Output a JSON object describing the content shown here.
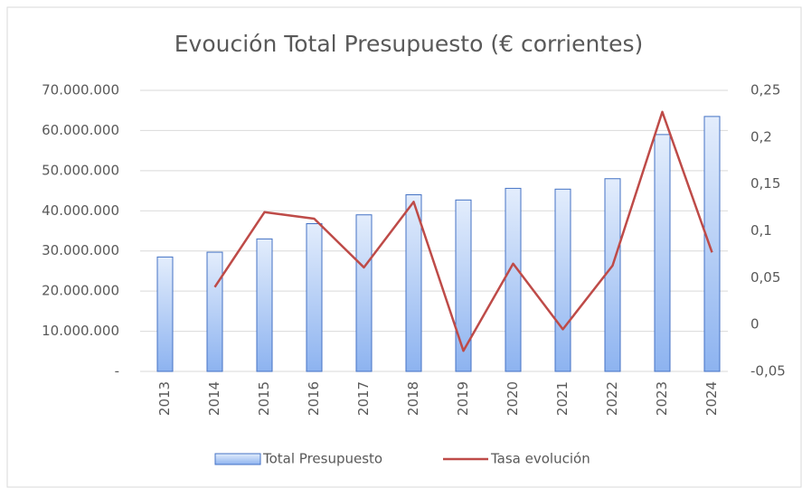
{
  "chart_data": {
    "type": "bar-line",
    "title": "Evoución  Total Presupuesto  (€ corrientes)",
    "categories": [
      "2013",
      "2014",
      "2015",
      "2016",
      "2017",
      "2018",
      "2019",
      "2020",
      "2021",
      "2022",
      "2023",
      "2024"
    ],
    "series": [
      {
        "name": "Total Presupuesto",
        "type": "bar",
        "color": "#4472c4",
        "values": [
          28500000,
          29700000,
          33000000,
          36800000,
          39000000,
          44000000,
          42700000,
          45600000,
          45400000,
          48000000,
          59000000,
          63500000
        ]
      },
      {
        "name": "Tasa evolución",
        "type": "line",
        "axis": "y2",
        "color": "#be4b48",
        "values": [
          null,
          0.04,
          0.12,
          0.113,
          0.061,
          0.131,
          -0.028,
          0.065,
          -0.005,
          0.063,
          0.227,
          0.077
        ]
      }
    ],
    "ylim": [
      0,
      70000000
    ],
    "yticks": [
      {
        "value": 0,
        "label": "-"
      },
      {
        "value": 10000000,
        "label": "10.000.000"
      },
      {
        "value": 20000000,
        "label": "20.000.000"
      },
      {
        "value": 30000000,
        "label": "30.000.000"
      },
      {
        "value": 40000000,
        "label": "40.000.000"
      },
      {
        "value": 50000000,
        "label": "50.000.000"
      },
      {
        "value": 60000000,
        "label": "60.000.000"
      },
      {
        "value": 70000000,
        "label": "70.000.000"
      }
    ],
    "y2lim": [
      -0.05,
      0.25
    ],
    "y2ticks": [
      {
        "value": -0.05,
        "label": "-0,05"
      },
      0,
      {
        "value": 0.05,
        "label": "0,05"
      },
      {
        "value": 0.1,
        "label": "0,1"
      },
      {
        "value": 0.15,
        "label": "0,15"
      },
      {
        "value": 0.2,
        "label": "0,2"
      },
      {
        "value": 0.25,
        "label": "0,25"
      }
    ],
    "grid": true,
    "legend": "bottom"
  }
}
